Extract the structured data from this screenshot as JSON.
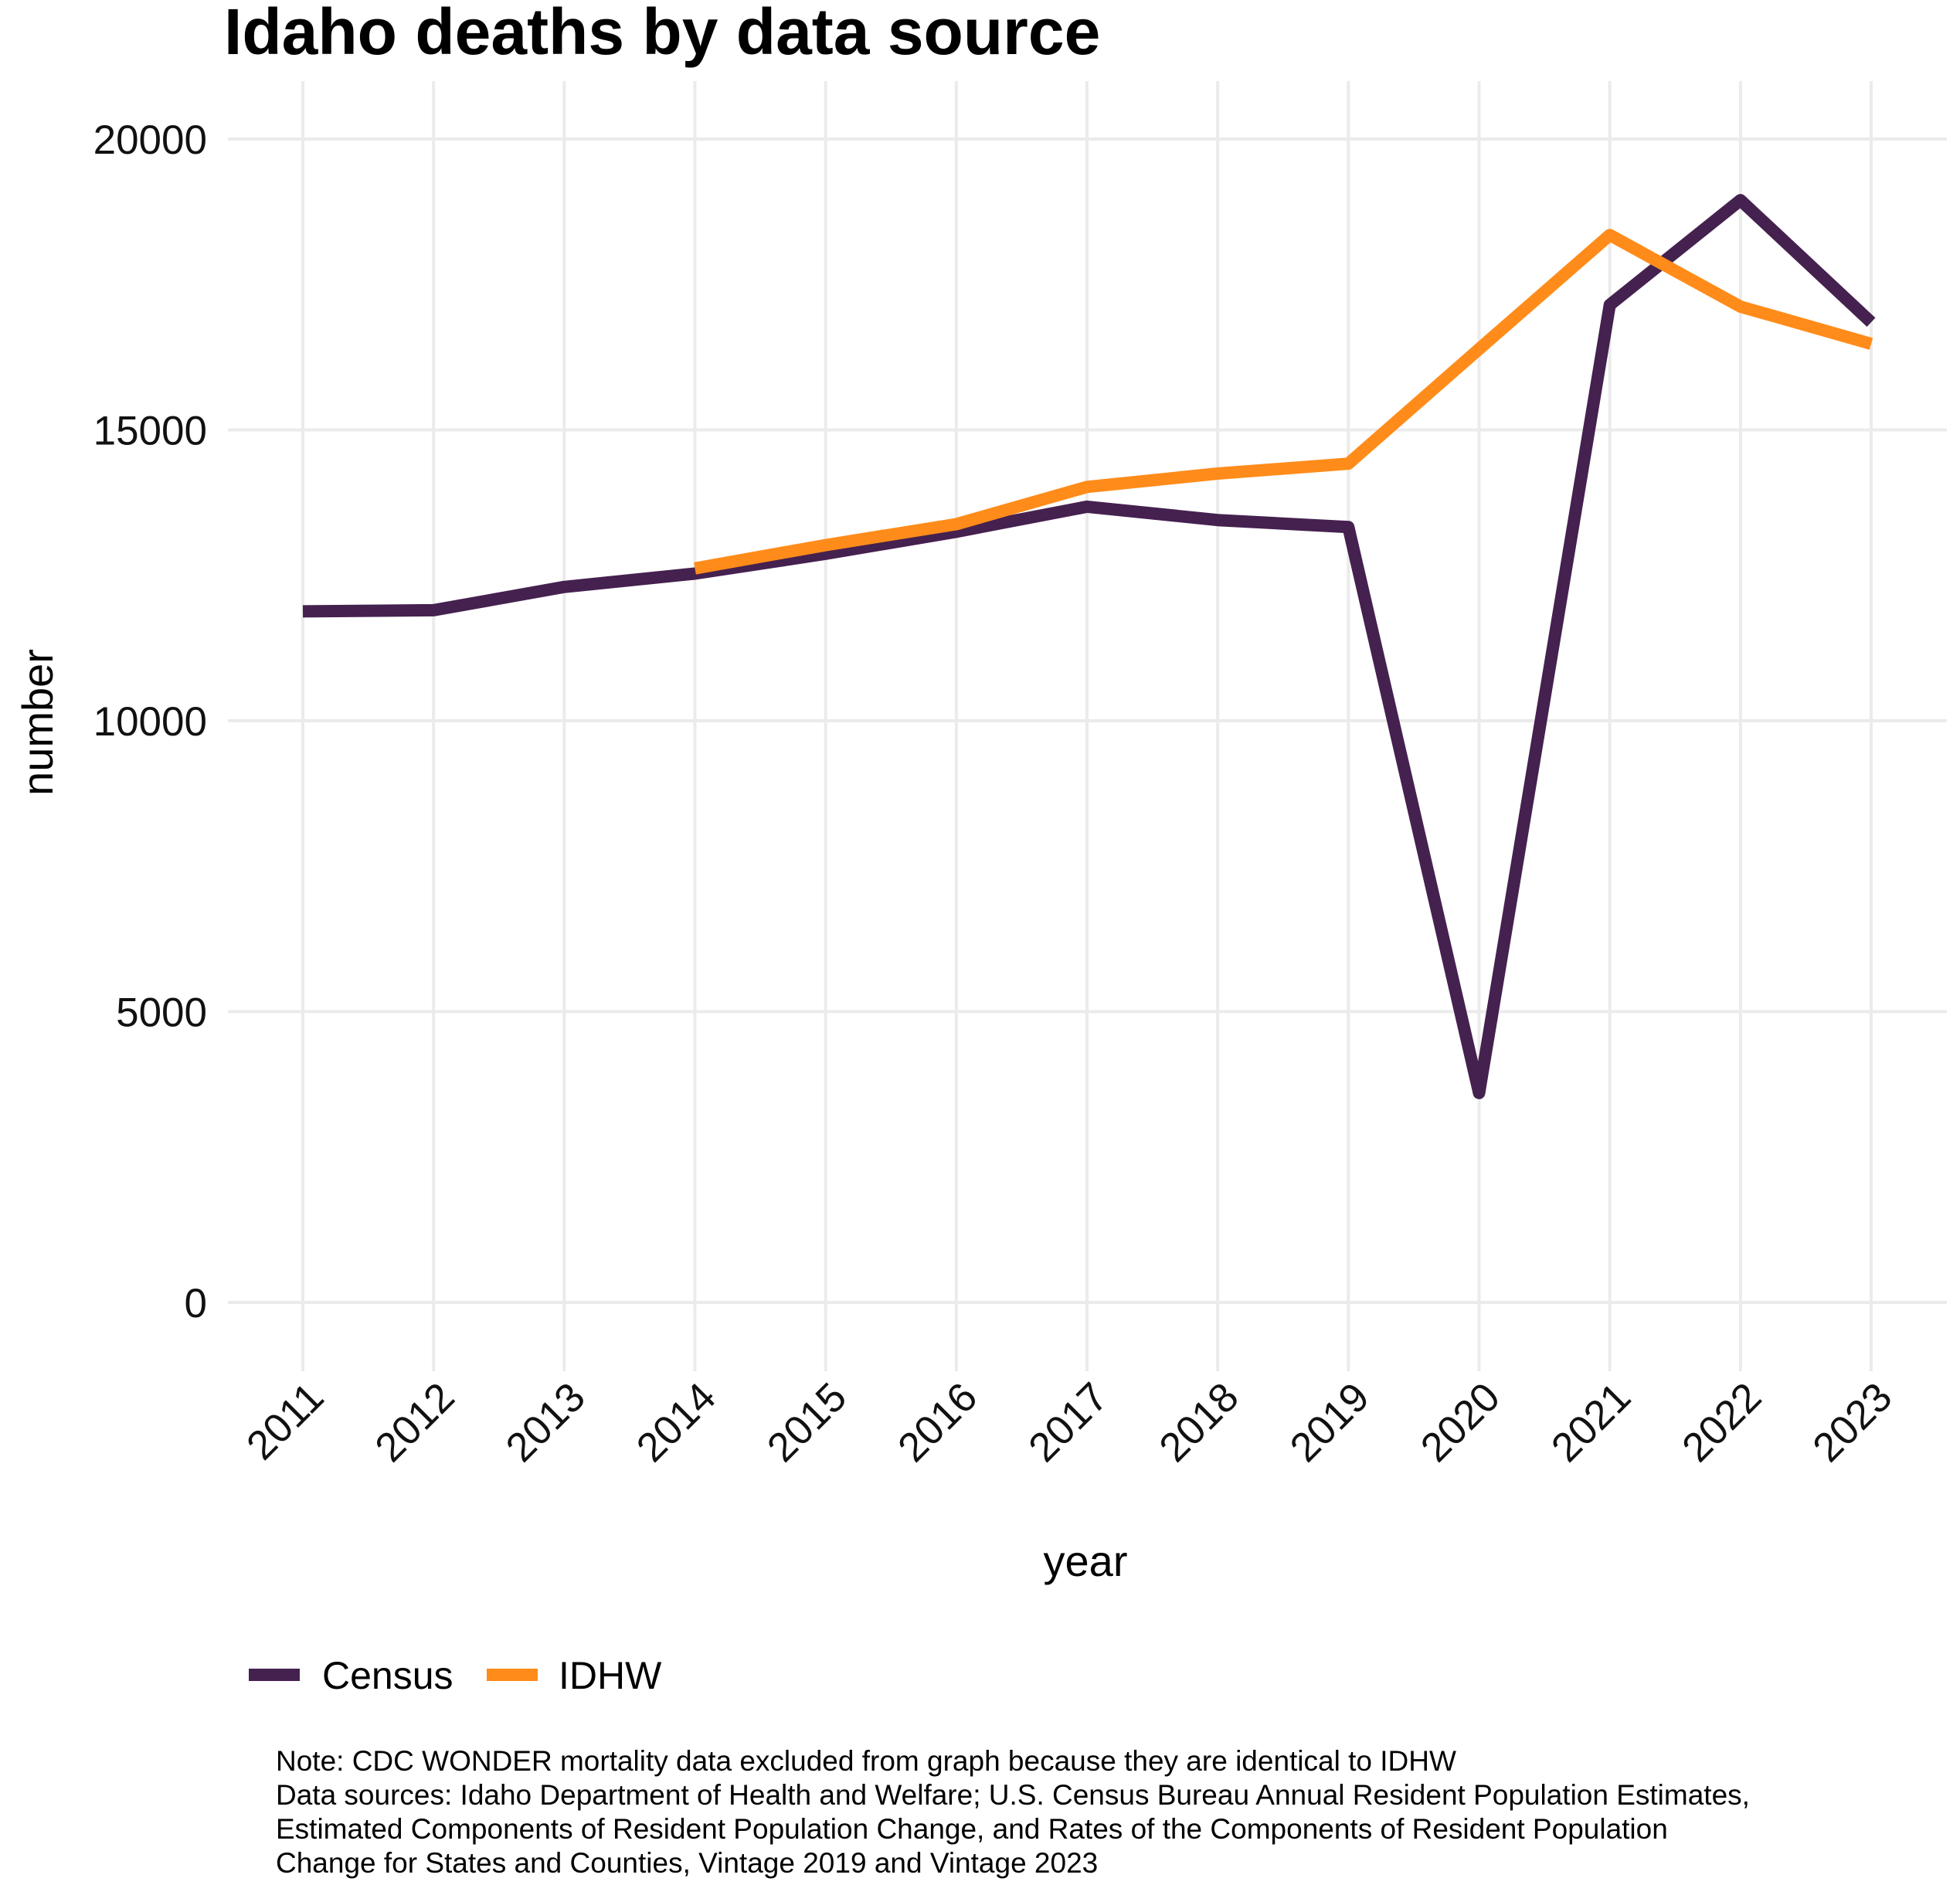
{
  "chart_data": {
    "type": "line",
    "title": "Idaho deaths by data source",
    "xlabel": "year",
    "ylabel": "number",
    "x": [
      2011,
      2012,
      2013,
      2014,
      2015,
      2016,
      2017,
      2018,
      2019,
      2020,
      2021,
      2022,
      2023
    ],
    "x_tick_labels": [
      "2011",
      "2012",
      "2013",
      "2014",
      "2015",
      "2016",
      "2017",
      "2018",
      "2019",
      "2020",
      "2021",
      "2022",
      "2023"
    ],
    "y_ticks": [
      0,
      5000,
      10000,
      15000,
      20000
    ],
    "y_tick_labels": [
      "0",
      "5000",
      "10000",
      "15000",
      "20000"
    ],
    "xlim": [
      2011,
      2023
    ],
    "ylim": [
      -800,
      21000
    ],
    "grid": true,
    "legend_position": "bottom-left",
    "series": [
      {
        "name": "Census",
        "color": "#45214f",
        "values": [
          11880,
          11900,
          12300,
          12530,
          12870,
          13250,
          13680,
          13450,
          13330,
          3600,
          17150,
          18950,
          16850
        ]
      },
      {
        "name": "IDHW",
        "color": "#ff8c1a",
        "values": [
          null,
          null,
          null,
          12620,
          13020,
          13380,
          14020,
          14250,
          14420,
          16390,
          18350,
          17120,
          16480
        ]
      }
    ]
  },
  "note_lines": [
    "Note: CDC WONDER mortality data excluded from graph because they are identical to IDHW",
    "Data sources: Idaho Department of Health and Welfare; U.S. Census Bureau Annual Resident Population Estimates,",
    "Estimated Components of Resident Population Change, and Rates of the Components of Resident Population",
    "Change for States and Counties, Vintage 2019 and Vintage 2023"
  ]
}
